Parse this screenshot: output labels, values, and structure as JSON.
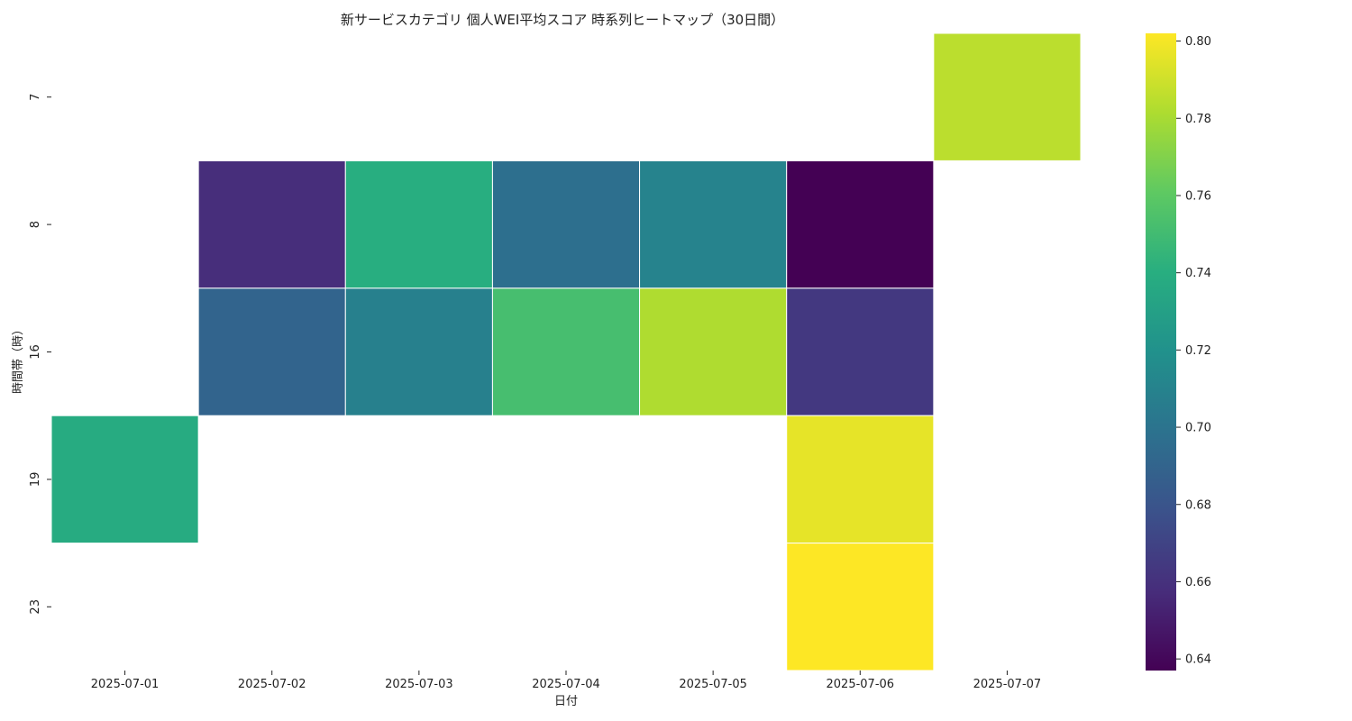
{
  "chart_data": {
    "type": "heatmap",
    "title": "新サービスカテゴリ 個人WEI平均スコア 時系列ヒートマップ（30日間）",
    "xlabel": "日付",
    "ylabel": "時間帯（時）",
    "x_categories": [
      "2025-07-01",
      "2025-07-02",
      "2025-07-03",
      "2025-07-04",
      "2025-07-05",
      "2025-07-06",
      "2025-07-07"
    ],
    "y_categories": [
      "7",
      "8",
      "16",
      "19",
      "23"
    ],
    "values": [
      [
        null,
        null,
        null,
        null,
        null,
        null,
        0.785
      ],
      [
        null,
        0.658,
        0.74,
        0.697,
        0.71,
        0.637,
        null
      ],
      [
        null,
        0.69,
        0.708,
        0.752,
        0.782,
        0.664,
        null
      ],
      [
        0.738,
        null,
        null,
        null,
        null,
        0.796,
        null
      ],
      [
        null,
        null,
        null,
        null,
        null,
        0.802,
        null
      ]
    ],
    "colormap": "viridis",
    "colorbar": {
      "vmin": 0.637,
      "vmax": 0.802,
      "ticks": [
        "0.64",
        "0.66",
        "0.68",
        "0.70",
        "0.72",
        "0.74",
        "0.76",
        "0.78",
        "0.80"
      ]
    },
    "grid": false
  }
}
